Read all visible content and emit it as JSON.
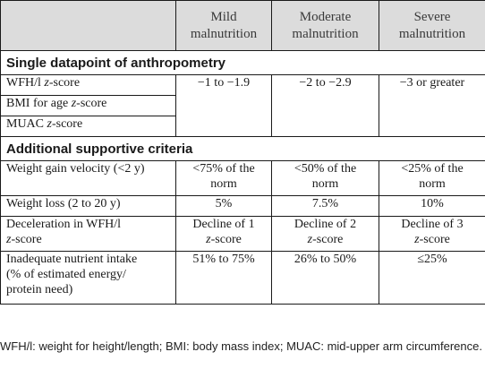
{
  "table": {
    "headers": [
      "",
      "Mild malnutrition",
      "Moderate malnutrition",
      "Severe malnutrition"
    ],
    "header_lines": {
      "mild": [
        "Mild",
        "malnutrition"
      ],
      "moderate": [
        "Moderate",
        "malnutrition"
      ],
      "severe": [
        "Severe",
        "malnutrition"
      ]
    },
    "sections": [
      {
        "title": "Single datapoint of anthropometry",
        "rows": [
          {
            "label_pre": "WFH/l ",
            "label_italic": "z",
            "label_post": "-score"
          },
          {
            "label_pre": "BMI for age ",
            "label_italic": "z",
            "label_post": "-score"
          },
          {
            "label_pre": "MUAC ",
            "label_italic": "z",
            "label_post": "-score"
          }
        ],
        "shared_values": [
          "−1 to −1.9",
          "−2 to −2.9",
          "−3 or greater"
        ]
      },
      {
        "title": "Additional supportive criteria",
        "rows": [
          {
            "label": "Weight gain velocity (<2 y)",
            "values": [
              [
                "<75% of the",
                "norm"
              ],
              [
                "<50% of the",
                "norm"
              ],
              [
                "<25% of the",
                "norm"
              ]
            ]
          },
          {
            "label": "Weight loss (2 to 20 y)",
            "values": [
              "5%",
              "7.5%",
              "10%"
            ]
          },
          {
            "label_lines": [
              "Deceleration in WFH/l",
              "z-score"
            ],
            "label_line2_italic": "z",
            "label_line2_post": "-score",
            "values": [
              [
                "Decline of 1",
                "z",
                "-score"
              ],
              [
                "Decline of 2",
                "z",
                "-score"
              ],
              [
                "Decline of 3",
                "z",
                "-score"
              ]
            ]
          },
          {
            "label_lines": [
              "Inadequate nutrient intake",
              "(% of estimated energy/",
              "protein need)"
            ],
            "values": [
              "51% to 75%",
              "26% to 50%",
              "≤25%"
            ]
          }
        ]
      }
    ]
  },
  "footnote": "WFH/l: weight for height/length; BMI: body mass index; MUAC: mid-upper arm circumference."
}
